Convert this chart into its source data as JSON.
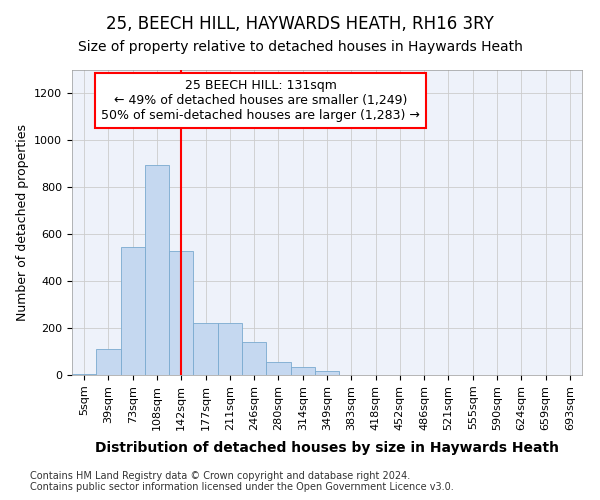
{
  "title": "25, BEECH HILL, HAYWARDS HEATH, RH16 3RY",
  "subtitle": "Size of property relative to detached houses in Haywards Heath",
  "xlabel": "Distribution of detached houses by size in Haywards Heath",
  "ylabel": "Number of detached properties",
  "bar_labels": [
    "5sqm",
    "39sqm",
    "73sqm",
    "108sqm",
    "142sqm",
    "177sqm",
    "211sqm",
    "246sqm",
    "280sqm",
    "314sqm",
    "349sqm",
    "383sqm",
    "418sqm",
    "452sqm",
    "486sqm",
    "521sqm",
    "555sqm",
    "590sqm",
    "624sqm",
    "659sqm",
    "693sqm"
  ],
  "bar_values": [
    5,
    110,
    545,
    895,
    530,
    220,
    220,
    140,
    55,
    35,
    18,
    0,
    0,
    0,
    0,
    0,
    0,
    0,
    0,
    0,
    0
  ],
  "bar_color": "#c5d8f0",
  "bar_edge_color": "#7aaad0",
  "red_line_x": 4,
  "annotation_text": "25 BEECH HILL: 131sqm\n← 49% of detached houses are smaller (1,249)\n50% of semi-detached houses are larger (1,283) →",
  "ylim": [
    0,
    1300
  ],
  "yticks": [
    0,
    200,
    400,
    600,
    800,
    1000,
    1200
  ],
  "footer": "Contains HM Land Registry data © Crown copyright and database right 2024.\nContains public sector information licensed under the Open Government Licence v3.0.",
  "title_fontsize": 12,
  "subtitle_fontsize": 10,
  "xlabel_fontsize": 10,
  "ylabel_fontsize": 9,
  "annotation_fontsize": 9,
  "tick_fontsize": 8
}
